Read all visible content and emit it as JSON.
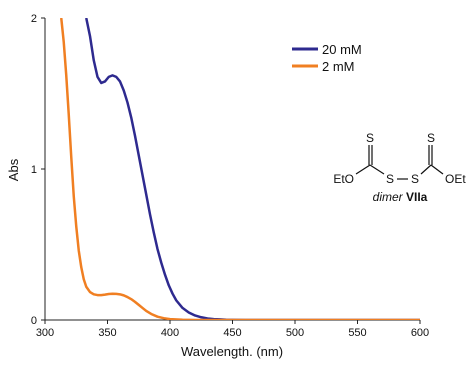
{
  "chart_data": {
    "type": "line",
    "title": "",
    "xlabel": "Wavelength. (nm)",
    "ylabel": "Abs",
    "xlim": [
      300,
      600
    ],
    "ylim": [
      0,
      2
    ],
    "x_ticks": [
      "300",
      "350",
      "400",
      "450",
      "500",
      "550",
      "600"
    ],
    "y_ticks": [
      "0",
      "1",
      "2"
    ],
    "legend_position": "top-right",
    "series": [
      {
        "name": "20 mM",
        "color": "#2e2a8f",
        "x": [
          333,
          336,
          339,
          342,
          345,
          348,
          351,
          354,
          357,
          360,
          363,
          366,
          369,
          372,
          375,
          378,
          381,
          384,
          387,
          390,
          393,
          396,
          399,
          402,
          405,
          410,
          415,
          420,
          425,
          430,
          435,
          440,
          445,
          450,
          460,
          480,
          520,
          560,
          600
        ],
        "y": [
          2.0,
          1.88,
          1.72,
          1.61,
          1.57,
          1.58,
          1.61,
          1.62,
          1.61,
          1.58,
          1.52,
          1.44,
          1.34,
          1.22,
          1.09,
          0.96,
          0.83,
          0.7,
          0.58,
          0.47,
          0.38,
          0.3,
          0.23,
          0.175,
          0.13,
          0.08,
          0.05,
          0.03,
          0.018,
          0.01,
          0.006,
          0.004,
          0.002,
          0.001,
          0.0,
          0.0,
          0.0,
          0.0,
          0.0
        ]
      },
      {
        "name": "2 mM",
        "color": "#f07f22",
        "x": [
          313,
          315,
          317,
          319,
          321,
          323,
          325,
          327,
          329,
          331,
          333,
          336,
          339,
          342,
          345,
          348,
          351,
          354,
          357,
          360,
          363,
          366,
          369,
          372,
          375,
          378,
          381,
          385,
          390,
          395,
          400,
          410,
          420,
          450,
          500,
          600
        ],
        "y": [
          2.0,
          1.84,
          1.62,
          1.36,
          1.08,
          0.82,
          0.62,
          0.46,
          0.35,
          0.27,
          0.22,
          0.185,
          0.17,
          0.165,
          0.165,
          0.168,
          0.172,
          0.174,
          0.173,
          0.17,
          0.163,
          0.152,
          0.138,
          0.12,
          0.1,
          0.08,
          0.06,
          0.04,
          0.022,
          0.012,
          0.006,
          0.002,
          0.0,
          0.0,
          0.0,
          0.0
        ]
      }
    ],
    "annotation": {
      "atoms": [
        "S",
        "S",
        "S",
        "S",
        "EtO",
        "OEt"
      ],
      "caption_prefix": "dimer",
      "caption_bold": "VIIa"
    }
  }
}
